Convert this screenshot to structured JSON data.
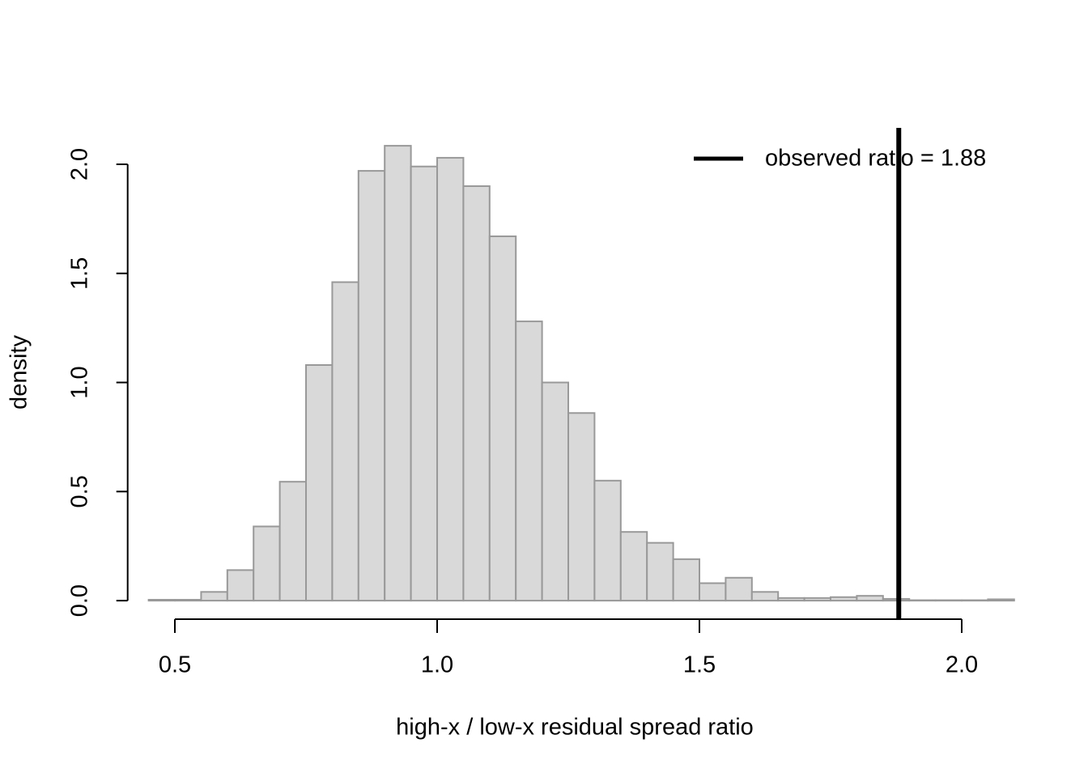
{
  "chart_data": {
    "type": "histogram",
    "xlabel": "high-x / low-x residual spread ratio",
    "ylabel": "density",
    "bins": [
      0.45,
      0.5,
      0.55,
      0.6,
      0.65,
      0.7,
      0.75,
      0.8,
      0.85,
      0.9,
      0.95,
      1.0,
      1.05,
      1.1,
      1.15,
      1.2,
      1.25,
      1.3,
      1.35,
      1.4,
      1.45,
      1.5,
      1.55,
      1.6,
      1.65,
      1.7,
      1.75,
      1.8,
      1.85,
      1.9,
      1.95,
      2.0,
      2.05,
      2.1
    ],
    "values": [
      0.004,
      0.004,
      0.04,
      0.14,
      0.34,
      0.545,
      1.08,
      1.46,
      1.97,
      2.085,
      1.99,
      2.03,
      1.9,
      1.67,
      1.28,
      1.0,
      0.86,
      0.55,
      0.315,
      0.265,
      0.19,
      0.08,
      0.105,
      0.04,
      0.012,
      0.012,
      0.016,
      0.022,
      0.008,
      0.002,
      0.002,
      0.002,
      0.006
    ],
    "color": "#d9d9d9",
    "edge_color": "#999999",
    "xlim": [
      0.41,
      2.1
    ],
    "ylim": [
      -0.085,
      2.167
    ],
    "xticks": [
      {
        "value": 0.5,
        "label": "0.5"
      },
      {
        "value": 1.0,
        "label": "1.0"
      },
      {
        "value": 1.5,
        "label": "1.5"
      },
      {
        "value": 2.0,
        "label": "2.0"
      }
    ],
    "yticks": [
      {
        "value": 0.0,
        "label": "0.0"
      },
      {
        "value": 0.5,
        "label": "0.5"
      },
      {
        "value": 1.0,
        "label": "1.0"
      },
      {
        "value": 1.5,
        "label": "1.5"
      },
      {
        "value": 2.0,
        "label": "2.0"
      }
    ],
    "vline": {
      "value": 1.88,
      "label": "observed ratio = 1.88",
      "color": "#000000"
    },
    "legend": "top-right"
  }
}
